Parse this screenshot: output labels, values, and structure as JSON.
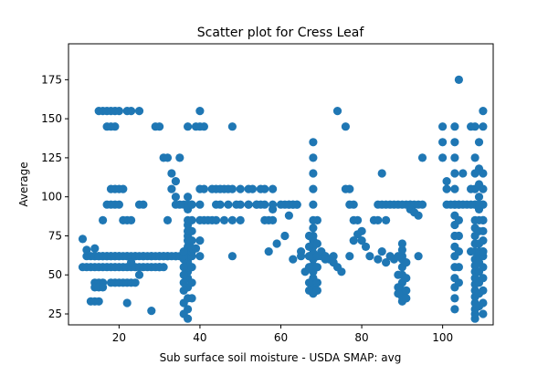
{
  "chart_data": {
    "type": "scatter",
    "title": "Scatter plot for Cress Leaf",
    "xlabel": "Sub surface soil moisture - USDA SMAP: avg",
    "ylabel": "Average",
    "xlim": [
      7.5,
      112.5
    ],
    "ylim": [
      18,
      198
    ],
    "xticks": [
      20,
      40,
      60,
      80,
      100
    ],
    "yticks": [
      25,
      50,
      75,
      100,
      125,
      150,
      175
    ],
    "grid": false,
    "marker_color": "#1f77b4",
    "series": [
      {
        "x": [
          15,
          16,
          17,
          18,
          19,
          20,
          22,
          23,
          25,
          17,
          18,
          19,
          14,
          15,
          16,
          17,
          18,
          19,
          20,
          22,
          24,
          26,
          28,
          30,
          32,
          34,
          36,
          12,
          13,
          14,
          15,
          16,
          17,
          18,
          19,
          20,
          21,
          22,
          23,
          24,
          25,
          26,
          27,
          28,
          29,
          30,
          31,
          32,
          33,
          34,
          35,
          11,
          12,
          13,
          14,
          15,
          16,
          17,
          18,
          19,
          20,
          21,
          22,
          23,
          24,
          25,
          26,
          27,
          28,
          29,
          30,
          31,
          14,
          15,
          16,
          18,
          19,
          20,
          21,
          22,
          23,
          24,
          14,
          15,
          16,
          13,
          14,
          15,
          17,
          18,
          19,
          20,
          18,
          19,
          20,
          21,
          21,
          22,
          23,
          25,
          26,
          11,
          12,
          22,
          28,
          16,
          14,
          23,
          25,
          29,
          30,
          31,
          32,
          33,
          34,
          34,
          35,
          36,
          37,
          38,
          37,
          37,
          37,
          37,
          37,
          37,
          37,
          37,
          37,
          37,
          37,
          37,
          37,
          37,
          37,
          37,
          37,
          37,
          37,
          37,
          37,
          36,
          36,
          36,
          36,
          36,
          36,
          36,
          36,
          36,
          38,
          38,
          38,
          38,
          38,
          38,
          38,
          38,
          38,
          39,
          40,
          40,
          41,
          43,
          40,
          40,
          40,
          40,
          40,
          34,
          33,
          32,
          31,
          30,
          35,
          38,
          39,
          41,
          43,
          44,
          45,
          46,
          47,
          48,
          50,
          52,
          53,
          55,
          56,
          58,
          44,
          45,
          47,
          49,
          50,
          52,
          54,
          55,
          56,
          58,
          60,
          62,
          63,
          64,
          41,
          42,
          44,
          46,
          48,
          50,
          56,
          57,
          58,
          48,
          48,
          52,
          54,
          57,
          59,
          61,
          63,
          65,
          66,
          58,
          62,
          61,
          62,
          63,
          64,
          65,
          67,
          69,
          70,
          71,
          68,
          68,
          68,
          68,
          68,
          68,
          68,
          68,
          68,
          68,
          68,
          68,
          68,
          68,
          68,
          68,
          68,
          67,
          67,
          67,
          67,
          67,
          67,
          69,
          69,
          69,
          69,
          69,
          69,
          70,
          71,
          72,
          73,
          74,
          75,
          71,
          73,
          74,
          76,
          77,
          78,
          79,
          80,
          78,
          77,
          76,
          77,
          78,
          79,
          80,
          81,
          82,
          84,
          85,
          86,
          87,
          88,
          89,
          91,
          92,
          83,
          84,
          86,
          84,
          86,
          85,
          85,
          90,
          90,
          90,
          90,
          90,
          90,
          90,
          90,
          90,
          90,
          90,
          89,
          89,
          89,
          89,
          91,
          91,
          91,
          91,
          88,
          87,
          92,
          93,
          94,
          95,
          94,
          92,
          93,
          94,
          95,
          101,
          102,
          103,
          104,
          105,
          106,
          107,
          108,
          109,
          110,
          103,
          103,
          103,
          103,
          103,
          103,
          103,
          103,
          103,
          103,
          103,
          103,
          103,
          103,
          103,
          103,
          104,
          104,
          104,
          104,
          104,
          104,
          100,
          100,
          100,
          101,
          101,
          104,
          105,
          108,
          108,
          108,
          108,
          108,
          108,
          108,
          108,
          108,
          108,
          108,
          108,
          108,
          108,
          108,
          108,
          108,
          108,
          108,
          108,
          109,
          109,
          109,
          109,
          109,
          109,
          109,
          109,
          109,
          109,
          109,
          109,
          109,
          109,
          109,
          110,
          110,
          110,
          110,
          110,
          110,
          110,
          110,
          110,
          110,
          110,
          110,
          110,
          110,
          110,
          107,
          107,
          107,
          110,
          110,
          109,
          108
        ],
        "y": [
          155,
          155,
          155,
          155,
          155,
          155,
          155,
          155,
          155,
          145,
          145,
          145,
          62,
          62,
          62,
          62,
          62,
          62,
          62,
          62,
          62,
          62,
          62,
          62,
          62,
          62,
          62,
          62,
          62,
          62,
          62,
          62,
          62,
          62,
          62,
          62,
          62,
          62,
          62,
          62,
          62,
          62,
          62,
          62,
          62,
          62,
          62,
          62,
          62,
          62,
          62,
          55,
          55,
          55,
          55,
          55,
          55,
          55,
          55,
          55,
          55,
          55,
          55,
          55,
          55,
          55,
          55,
          55,
          55,
          55,
          55,
          55,
          45,
          45,
          45,
          45,
          45,
          45,
          45,
          45,
          45,
          45,
          42,
          42,
          42,
          33,
          33,
          33,
          95,
          95,
          95,
          95,
          105,
          105,
          105,
          105,
          85,
          85,
          85,
          95,
          95,
          73,
          66,
          32,
          27,
          85,
          67,
          58,
          50,
          145,
          145,
          125,
          125,
          115,
          110,
          95,
          95,
          95,
          95,
          95,
          22,
          28,
          35,
          42,
          48,
          52,
          55,
          58,
          60,
          62,
          65,
          68,
          72,
          75,
          78,
          82,
          85,
          92,
          95,
          100,
          145,
          25,
          32,
          40,
          45,
          50,
          55,
          60,
          62,
          65,
          35,
          45,
          55,
          62,
          65,
          72,
          78,
          85,
          95,
          145,
          145,
          155,
          145,
          85,
          105,
          95,
          85,
          72,
          62,
          100,
          105,
          85,
          62,
          55,
          125,
          67,
          67,
          105,
          105,
          105,
          105,
          105,
          105,
          105,
          105,
          105,
          105,
          105,
          105,
          105,
          95,
          95,
          95,
          95,
          95,
          95,
          95,
          95,
          95,
          95,
          95,
          95,
          95,
          95,
          85,
          85,
          85,
          85,
          85,
          85,
          85,
          85,
          85,
          145,
          62,
          95,
          95,
          65,
          70,
          75,
          60,
          65,
          52,
          92,
          88,
          95,
          95,
          95,
          95,
          62,
          62,
          62,
          62,
          62,
          38,
          42,
          48,
          52,
          56,
          60,
          64,
          68,
          72,
          75,
          80,
          85,
          95,
          105,
          115,
          125,
          135,
          40,
          45,
          55,
          62,
          68,
          75,
          40,
          45,
          55,
          62,
          70,
          85,
          65,
          62,
          60,
          58,
          55,
          52,
          60,
          62,
          155,
          145,
          105,
          95,
          85,
          78,
          72,
          62,
          105,
          95,
          85,
          76,
          72,
          68,
          62,
          95,
          95,
          95,
          95,
          95,
          95,
          95,
          95,
          85,
          85,
          85,
          60,
          58,
          65,
          115,
          33,
          36,
          40,
          45,
          50,
          55,
          60,
          62,
          66,
          70,
          95,
          38,
          42,
          50,
          62,
          35,
          40,
          48,
          58,
          60,
          62,
          95,
          95,
          95,
          125,
          62,
          92,
          90,
          88,
          95,
          95,
          95,
          95,
          95,
          95,
          95,
          95,
          95,
          95,
          95,
          28,
          35,
          42,
          48,
          55,
          62,
          68,
          75,
          82,
          88,
          95,
          105,
          115,
          125,
          135,
          145,
          45,
          55,
          65,
          75,
          85,
          95,
          125,
          135,
          145,
          110,
          105,
          175,
          115,
          22,
          25,
          28,
          32,
          36,
          40,
          44,
          48,
          52,
          56,
          60,
          65,
          70,
          75,
          80,
          85,
          95,
          105,
          115,
          125,
          30,
          38,
          45,
          52,
          58,
          62,
          65,
          70,
          78,
          85,
          92,
          100,
          108,
          118,
          135,
          25,
          32,
          40,
          48,
          55,
          62,
          65,
          72,
          78,
          85,
          95,
          105,
          115,
          145,
          155,
          145,
          105,
          65,
          85,
          65,
          95,
          145
        ]
      }
    ]
  }
}
